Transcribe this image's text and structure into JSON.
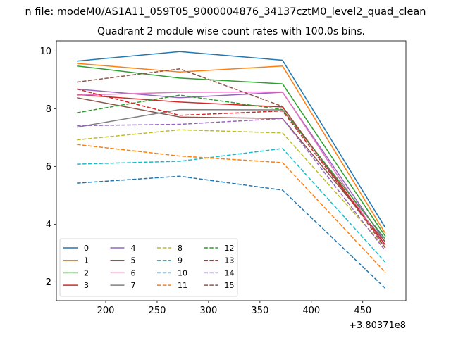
{
  "suptitle": "n file: modeM0/AS1A11_059T05_9000004876_34137cztM0_level2_quad_clean",
  "chart_data": {
    "type": "line",
    "title": "Quadrant 2 module wise count rates with 100.0s bins.",
    "xlabel": "",
    "ylabel": "",
    "x_offset_label": "+3.80371e8",
    "x": [
      172,
      272,
      372,
      472
    ],
    "xlim": [
      152,
      492
    ],
    "ylim": [
      1.35,
      10.35
    ],
    "xticks": [
      200,
      250,
      300,
      350,
      400,
      450
    ],
    "yticks": [
      2,
      4,
      6,
      8,
      10
    ],
    "grid": false,
    "legend_position": "lower-left",
    "series": [
      {
        "name": "0",
        "color": "#1f77b4",
        "dash": "solid",
        "values": [
          9.65,
          9.98,
          9.68,
          3.88
        ]
      },
      {
        "name": "1",
        "color": "#ff7f0e",
        "dash": "solid",
        "values": [
          9.57,
          9.27,
          9.48,
          3.68
        ]
      },
      {
        "name": "2",
        "color": "#2ca02c",
        "dash": "solid",
        "values": [
          9.48,
          9.06,
          8.86,
          3.58
        ]
      },
      {
        "name": "3",
        "color": "#d62728",
        "dash": "solid",
        "values": [
          8.49,
          8.23,
          8.06,
          3.28
        ]
      },
      {
        "name": "4",
        "color": "#9467bd",
        "dash": "solid",
        "values": [
          8.68,
          8.38,
          8.57,
          3.38
        ]
      },
      {
        "name": "5",
        "color": "#8c564b",
        "dash": "solid",
        "values": [
          8.38,
          7.71,
          7.66,
          3.38
        ]
      },
      {
        "name": "6",
        "color": "#e377c2",
        "dash": "solid",
        "values": [
          8.47,
          8.57,
          8.58,
          3.18
        ]
      },
      {
        "name": "7",
        "color": "#7f7f7f",
        "dash": "solid",
        "values": [
          7.36,
          7.97,
          7.96,
          3.48
        ]
      },
      {
        "name": "8",
        "color": "#bcbd22",
        "dash": "dashed",
        "values": [
          6.92,
          7.27,
          7.16,
          3.18
        ]
      },
      {
        "name": "9",
        "color": "#17becf",
        "dash": "dashed",
        "values": [
          6.08,
          6.18,
          6.62,
          2.68
        ]
      },
      {
        "name": "10",
        "color": "#1f77b4",
        "dash": "dashed",
        "values": [
          5.42,
          5.66,
          5.18,
          1.78
        ]
      },
      {
        "name": "11",
        "color": "#ff7f0e",
        "dash": "dashed",
        "values": [
          6.76,
          6.36,
          6.13,
          2.33
        ]
      },
      {
        "name": "12",
        "color": "#2ca02c",
        "dash": "dashed",
        "values": [
          7.86,
          8.47,
          7.97,
          3.48
        ]
      },
      {
        "name": "13",
        "color": "#d62728",
        "dash": "dashed",
        "values": [
          8.68,
          7.77,
          7.92,
          3.28
        ]
      },
      {
        "name": "14",
        "color": "#9467bd",
        "dash": "dashed",
        "values": [
          7.41,
          7.46,
          7.66,
          3.08
        ]
      },
      {
        "name": "15",
        "color": "#8c564b",
        "dash": "dashed",
        "values": [
          8.92,
          9.38,
          8.08,
          3.18
        ]
      }
    ]
  }
}
